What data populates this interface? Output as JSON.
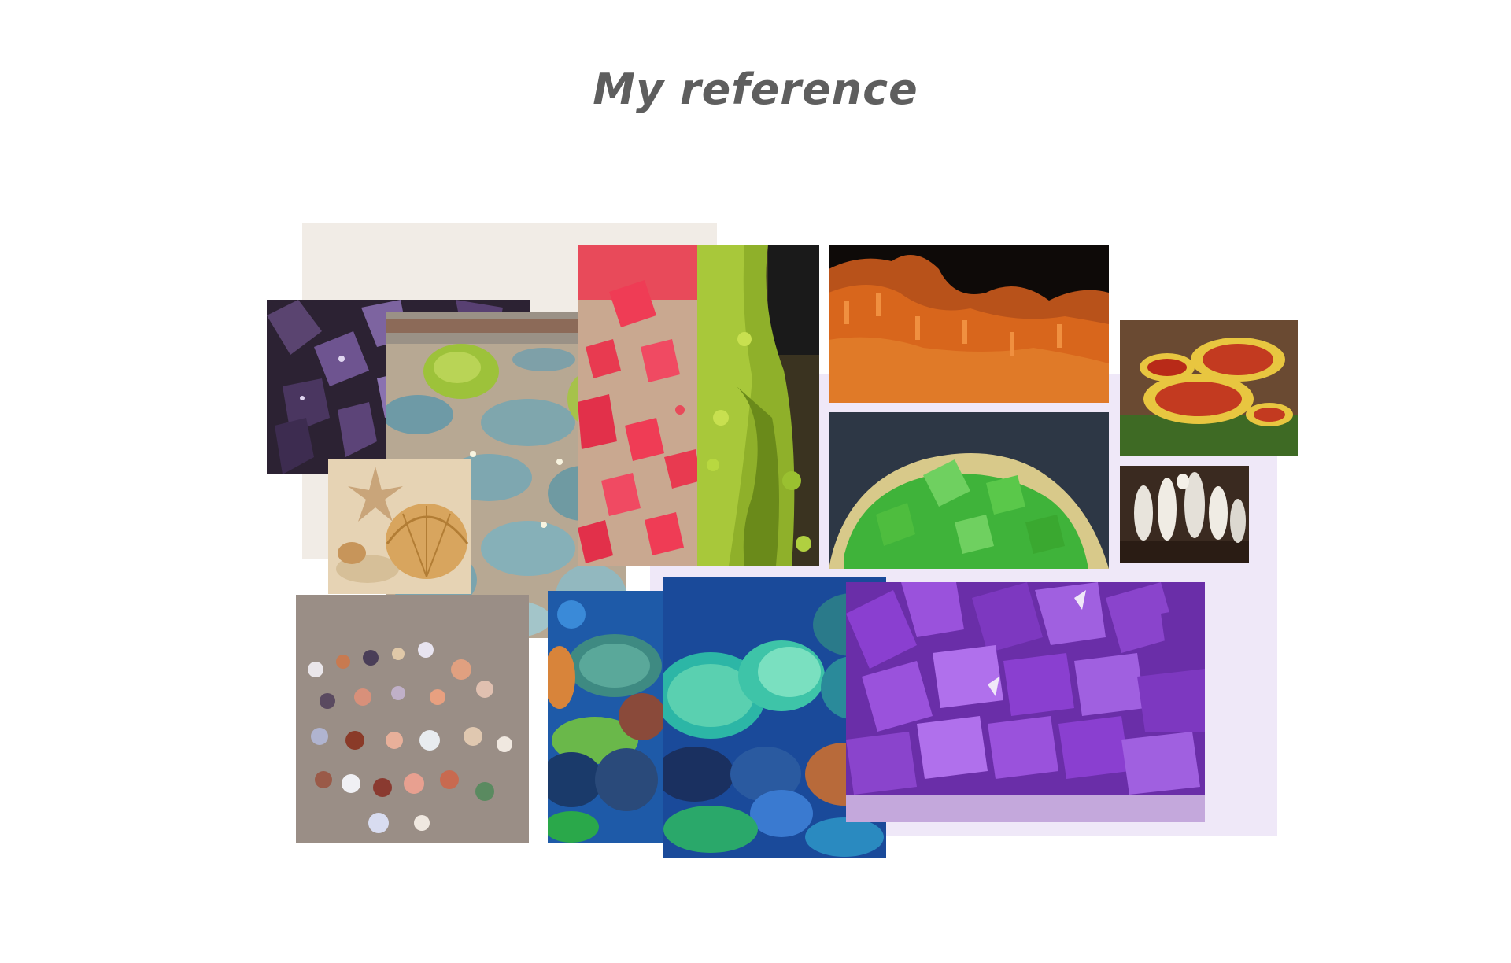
{
  "title": "My reference",
  "colors": {
    "title_text": "#5e5e5e",
    "beige_panel": "#f1ece6",
    "lavender_panel": "#efe8f8",
    "amethyst_dark": "#3a2a45",
    "amethyst_bright": "#8a3fd0",
    "rhodochrosite_red": "#ef3c55",
    "pyromorphite_green": "#8fc21a",
    "vanadinite_orange": "#d8661c",
    "fluorite_green": "#3fb33a",
    "reishi_red": "#c33a20",
    "coral_teal": "#2cb6a6"
  },
  "tiles": [
    {
      "name": "amethyst-dark-photo",
      "icon": "amethyst-cluster-icon"
    },
    {
      "name": "garden-plants-photo",
      "icon": "garden-icon"
    },
    {
      "name": "starfish-seashell-photo",
      "icon": "seashell-icon"
    },
    {
      "name": "red-crystals-photo",
      "icon": "crystal-icon"
    },
    {
      "name": "green-crystal-moss-photo",
      "icon": "moss-icon"
    },
    {
      "name": "orange-vanadinite-photo",
      "icon": "mineral-icon"
    },
    {
      "name": "green-fluorite-photo",
      "icon": "crystal-icon"
    },
    {
      "name": "reishi-mushroom-photo",
      "icon": "mushroom-icon"
    },
    {
      "name": "white-mushrooms-photo",
      "icon": "mushroom-icon"
    },
    {
      "name": "seashells-on-sand-photo",
      "icon": "seashell-icon"
    },
    {
      "name": "coral-reef-left-photo",
      "icon": "coral-icon"
    },
    {
      "name": "coral-reef-main-photo",
      "icon": "coral-icon"
    },
    {
      "name": "purple-amethyst-photo",
      "icon": "amethyst-cluster-icon"
    }
  ]
}
